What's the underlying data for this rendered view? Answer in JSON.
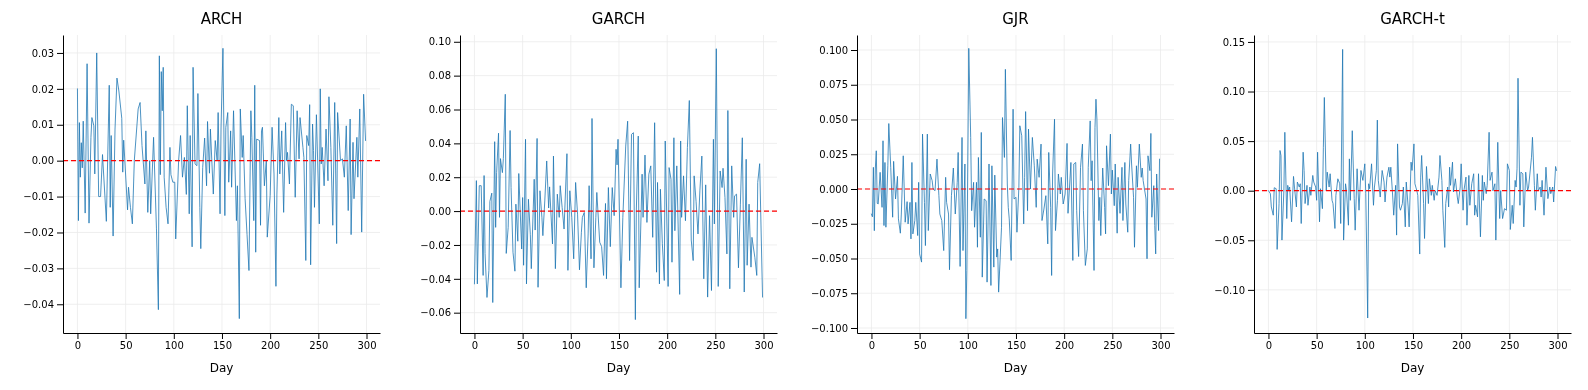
{
  "chart_data": [
    {
      "type": "line",
      "title": "ARCH",
      "xlabel": "Day",
      "xlim": [
        -15,
        314
      ],
      "xticks": [
        0,
        50,
        100,
        150,
        200,
        250,
        300
      ],
      "ylim": [
        -0.048,
        0.035
      ],
      "yticks": [
        {
          "value": -0.04,
          "label": "−0.04"
        },
        {
          "value": -0.03,
          "label": "−0.03"
        },
        {
          "value": -0.02,
          "label": "−0.02"
        },
        {
          "value": -0.01,
          "label": "−0.01"
        },
        {
          "value": 0,
          "label": "0.00"
        },
        {
          "value": 0.01,
          "label": "0.01"
        },
        {
          "value": 0.02,
          "label": "0.02"
        },
        {
          "value": 0.03,
          "label": "0.03"
        }
      ],
      "grid": true,
      "ref_lines": [
        {
          "axis": "y",
          "value": 0,
          "color": "#ff0000",
          "line_style": "dashed"
        }
      ],
      "series": [
        {
          "color": "#1f77b4",
          "x": [
            0,
            1,
            2,
            3,
            4,
            5,
            6,
            8,
            10,
            12,
            14,
            15,
            17,
            18,
            20,
            22,
            24,
            26,
            30,
            33,
            34,
            35,
            37,
            39,
            41,
            43,
            46,
            47,
            48,
            52,
            53,
            55,
            57,
            59,
            63,
            65,
            67,
            70,
            71,
            73,
            75,
            76,
            79,
            82,
            84,
            85,
            86,
            87,
            88,
            89,
            90,
            92,
            94,
            96,
            97,
            99,
            101,
            102,
            105,
            107,
            109,
            111,
            113,
            114,
            116,
            117,
            119,
            120,
            122,
            124,
            125,
            127,
            128,
            130,
            132,
            134,
            135,
            137,
            138,
            141,
            143,
            145,
            146,
            148,
            149,
            151,
            153,
            154,
            156,
            157,
            159,
            160,
            162,
            165,
            166,
            168,
            169,
            171,
            172,
            174,
            176,
            178,
            180,
            181,
            183,
            184,
            185,
            186,
            189,
            190,
            191,
            192,
            194,
            196,
            197,
            200,
            202,
            204,
            206,
            207,
            209,
            210,
            212,
            214,
            216,
            217,
            218,
            220,
            222,
            224,
            226,
            228,
            230,
            231,
            234,
            235,
            237,
            238,
            240,
            241,
            242,
            244,
            245,
            246,
            248,
            251,
            252,
            253,
            254,
            256,
            258,
            260,
            261,
            263,
            265,
            267,
            269,
            270,
            273,
            275,
            277,
            279,
            281,
            283,
            284,
            286,
            287,
            290,
            291,
            293,
            295,
            297,
            299
          ],
          "values": [
            0.02,
            -0.0167,
            0.0106,
            -0.0046,
            0.005,
            -0.002,
            0.011,
            -0.0146,
            0.027,
            -0.0174,
            0.0065,
            0.012,
            0.0097,
            -0.0037,
            0.03,
            -0.01,
            -0.01,
            0.0017,
            -0.0169,
            0.021,
            -0.013,
            0.007,
            -0.021,
            0.0088,
            0.023,
            0.0194,
            0.0118,
            -0.0032,
            0.0057,
            -0.0137,
            -0.0074,
            -0.013,
            -0.0176,
            0,
            0.0144,
            0.0162,
            0.0042,
            -0.0065,
            0.0083,
            -0.0144,
            0,
            -0.0148,
            0.0065,
            -0.019,
            -0.0415,
            0.0292,
            -0.0039,
            0.0248,
            0.0139,
            0.026,
            -0.0046,
            -0.013,
            -0.0176,
            0.0037,
            -0.0039,
            -0.006,
            -0.006,
            -0.0218,
            0,
            0.007,
            -0.0046,
            0.0009,
            -0.0094,
            0.0153,
            -0.0148,
            0.007,
            -0.024,
            0.026,
            -0.0009,
            -0.0014,
            0.0187,
            -0.013,
            -0.0245,
            -0.0019,
            0.0063,
            -0.007,
            0.0109,
            -0.0035,
            0.0088,
            -0.0093,
            0.0056,
            0,
            0.0134,
            -0.0148,
            0.0091,
            0.0313,
            -0.0153,
            0.0093,
            0.0134,
            -0.006,
            0.0083,
            -0.0074,
            0.0139,
            -0.0167,
            -0.007,
            -0.044,
            0.0144,
            0.0009,
            0.007,
            -0.0106,
            -0.0206,
            -0.0306,
            0.0139,
            0.0065,
            -0.0167,
            0.021,
            -0.0255,
            0.006,
            0.0056,
            -0.018,
            0.0083,
            0.0093,
            -0.007,
            0,
            -0.0213,
            -0.0097,
            0.0093,
            -0.0037,
            -0.035,
            -0.0093,
            0.012,
            -0.0037,
            0.0083,
            -0.0144,
            0.0106,
            0,
            0.0023,
            -0.0065,
            0.0157,
            0.0153,
            -0.0102,
            0.0139,
            0.0005,
            0.012,
            0.0037,
            0.0009,
            -0.0278,
            0.007,
            0.0042,
            0.0156,
            -0.029,
            0.0102,
            0.0028,
            -0.013,
            0.0128,
            -0.0176,
            0.02,
            -0.0009,
            0.0037,
            -0.007,
            0.0088,
            -0.0056,
            0.0178,
            0.0037,
            -0.018,
            0.0162,
            -0.0231,
            0.0134,
            0,
            0.0005,
            -0.0046,
            0.0097,
            -0.0139,
            0.0116,
            -0.0206,
            0.0051,
            -0.0106,
            0.0065,
            -0.0046,
            0.0144,
            -0.0199,
            0.0185,
            0.0056
          ]
        }
      ]
    },
    {
      "type": "line",
      "title": "GARCH",
      "xlabel": "Day",
      "xlim": [
        -15,
        314
      ],
      "xticks": [
        0,
        50,
        100,
        150,
        200,
        250,
        300
      ],
      "ylim": [
        -0.072,
        0.104
      ],
      "yticks": [
        {
          "value": -0.06,
          "label": "−0.06"
        },
        {
          "value": -0.04,
          "label": "−0.04"
        },
        {
          "value": -0.02,
          "label": "−0.02"
        },
        {
          "value": 0,
          "label": "0.00"
        },
        {
          "value": 0.02,
          "label": "0.02"
        },
        {
          "value": 0.04,
          "label": "0.04"
        },
        {
          "value": 0.06,
          "label": "0.06"
        },
        {
          "value": 0.08,
          "label": "0.08"
        },
        {
          "value": 0.1,
          "label": "0.10"
        }
      ],
      "grid": true,
      "ref_lines": [
        {
          "axis": "y",
          "value": 0,
          "color": "#ff0000",
          "line_style": "dashed"
        }
      ],
      "series": [
        {
          "color": "#1f77b4",
          "x": [
            0,
            2,
            3,
            5,
            7,
            9,
            10,
            11,
            13,
            15,
            16,
            18,
            19,
            21,
            22,
            23,
            25,
            26,
            27,
            29,
            30,
            32,
            33,
            35,
            37,
            38,
            40,
            42,
            43,
            45,
            46,
            49,
            50,
            51,
            53,
            54,
            56,
            58,
            59,
            62,
            63,
            65,
            66,
            68,
            70,
            71,
            73,
            75,
            77,
            78,
            81,
            82,
            84,
            86,
            88,
            89,
            91,
            93,
            96,
            97,
            99,
            101,
            103,
            105,
            107,
            109,
            111,
            112,
            114,
            116,
            118,
            119,
            121,
            122,
            124,
            126,
            127,
            130,
            132,
            134,
            136,
            137,
            139,
            141,
            143,
            145,
            147,
            148,
            149,
            152,
            154,
            157,
            159,
            161,
            163,
            165,
            167,
            168,
            170,
            171,
            174,
            175,
            177,
            179,
            181,
            183,
            185,
            187,
            189,
            190,
            192,
            193,
            195,
            197,
            198,
            201,
            202,
            204,
            205,
            207,
            208,
            210,
            213,
            214,
            215,
            217,
            219,
            221,
            223,
            225,
            227,
            228,
            230,
            232,
            234,
            236,
            238,
            240,
            242,
            244,
            246,
            248,
            249,
            251,
            253,
            255,
            257,
            258,
            260,
            262,
            263,
            265,
            267,
            269,
            270,
            272,
            274,
            276,
            278,
            280,
            282,
            283,
            285,
            287,
            288,
            291,
            293,
            294,
            296,
            299
          ],
          "values": [
            -0.043,
            0.018,
            -0.043,
            0.015,
            0.015,
            -0.038,
            0.021,
            -0.025,
            -0.051,
            -0.035,
            0.0057,
            0.0106,
            -0.054,
            0.041,
            -0.0096,
            0.0227,
            0.046,
            -0.0037,
            0.031,
            0.0227,
            0.031,
            0.069,
            -0.025,
            -0.0096,
            0.0476,
            0.0139,
            -0.0243,
            -0.0355,
            0.0041,
            -0.0178,
            0.0222,
            -0.0224,
            0.008,
            -0.032,
            0.0424,
            -0.043,
            0.007,
            -0.0139,
            -0.034,
            0.0188,
            -0.0112,
            0.0429,
            -0.045,
            0.012,
            -0.0037,
            -0.0145,
            0.006,
            0.0296,
            0.0018,
            0.0143,
            -0.0194,
            0.0325,
            -0.034,
            0.01,
            -0.0037,
            0.015,
            0.0022,
            -0.0106,
            0.0339,
            -0.035,
            0.012,
            -0.0037,
            -0.0282,
            0.0169,
            -0.0018,
            -0.0347,
            -0.0125,
            -0.0037,
            -0.0008,
            -0.0453,
            -0.0135,
            0.015,
            -0.0282,
            0.0547,
            -0.0335,
            -0.0037,
            0.011,
            -0.0184,
            -0.021,
            -0.038,
            0.0045,
            -0.04,
            0.0139,
            -0.021,
            0.0139,
            -0.0027,
            0.0365,
            0.0273,
            0.0424,
            -0.0453,
            -0.0037,
            0.0384,
            0.0531,
            -0.0292,
            0.0453,
            0.0463,
            -0.0641,
            0.0002,
            0.0443,
            -0.0453,
            0.0218,
            -0.0037,
            0.0331,
            -0.0067,
            0.0218,
            0.0267,
            -0.0155,
            0.0522,
            -0.0361,
            0.0169,
            -0.043,
            0.0129,
            -0.019,
            -0.041,
            0.0414,
            -0.0445,
            0.0257,
            0.0188,
            -0.0302,
            0.0433,
            -0.0116,
            0.0267,
            -0.0492,
            0.0414,
            -0.0037,
            0.0208,
            -0.0057,
            0.0375,
            0.0653,
            -0.0171,
            -0.0292,
            0.0208,
            0.0057,
            -0.0135,
            0.0124,
            0.0325,
            -0.04,
            0.0155,
            -0.0508,
            -0.0027,
            -0.0469,
            0.0424,
            -0.0076,
            0.0959,
            -0.0445,
            0.0237,
            0.0139,
            0.0253,
            0.008,
            -0.0253,
            0.0594,
            -0.0459,
            0.0267,
            -0.0037,
            0.009,
            0.01,
            -0.0335,
            0.0041,
            0.0433,
            -0.0478,
            0.0306,
            -0.032,
            0.0041,
            -0.0331,
            -0.0155,
            -0.0273,
            -0.038,
            0.0169,
            0.028,
            -0.0508
          ]
        }
      ]
    },
    {
      "type": "line",
      "title": "GJR",
      "xlabel": "Day",
      "xlim": [
        -15,
        314
      ],
      "xticks": [
        0,
        50,
        100,
        150,
        200,
        250,
        300
      ],
      "ylim": [
        -0.1036,
        0.1108
      ],
      "yticks": [
        {
          "value": -0.1,
          "label": "−0.100"
        },
        {
          "value": -0.075,
          "label": "−0.075"
        },
        {
          "value": -0.05,
          "label": "−0.050"
        },
        {
          "value": -0.025,
          "label": "−0.025"
        },
        {
          "value": 0,
          "label": "0.000"
        },
        {
          "value": 0.025,
          "label": "0.025"
        },
        {
          "value": 0.05,
          "label": "0.050"
        },
        {
          "value": 0.075,
          "label": "0.075"
        },
        {
          "value": 0.1,
          "label": "0.100"
        }
      ],
      "grid": true,
      "ref_lines": [
        {
          "axis": "y",
          "value": 0,
          "color": "#ff0000",
          "line_style": "dashed"
        }
      ],
      "series": [
        {
          "color": "#1f77b4",
          "x": [
            0,
            1,
            2,
            3,
            4,
            5,
            6,
            7,
            9,
            11,
            12,
            13,
            14,
            15,
            17,
            18,
            20,
            22,
            23,
            25,
            27,
            28,
            30,
            31,
            33,
            35,
            37,
            38,
            40,
            41,
            42,
            43,
            45,
            46,
            48,
            49,
            50,
            52,
            53,
            55,
            56,
            58,
            59,
            61,
            63,
            64,
            66,
            68,
            70,
            71,
            73,
            75,
            77,
            78,
            80,
            81,
            83,
            85,
            87,
            89,
            90,
            92,
            94,
            95,
            97,
            98,
            99,
            101,
            103,
            104,
            106,
            107,
            109,
            110,
            111,
            113,
            114,
            115,
            117,
            119,
            120,
            122,
            124,
            125,
            127,
            128,
            130,
            131,
            132,
            135,
            136,
            138,
            139,
            141,
            142,
            143,
            145,
            147,
            148,
            150,
            151,
            153,
            154,
            156,
            158,
            159,
            160,
            162,
            163,
            165,
            167,
            169,
            171,
            172,
            174,
            176,
            177,
            179,
            181,
            183,
            184,
            186,
            187,
            188,
            190,
            191,
            193,
            194,
            196,
            197,
            199,
            201,
            203,
            204,
            207,
            209,
            210,
            212,
            213,
            215,
            217,
            219,
            220,
            222,
            224,
            225,
            227,
            228,
            229,
            231,
            232,
            233,
            234,
            236,
            237,
            238,
            240,
            242,
            243,
            244,
            246,
            248,
            249,
            250,
            252,
            253,
            255,
            256,
            258,
            260,
            261,
            263,
            264,
            266,
            267,
            269,
            270,
            272,
            273,
            275,
            276,
            278,
            280,
            281,
            282,
            285,
            286,
            287,
            289,
            290,
            291,
            293,
            294,
            295,
            296,
            298,
            299
          ],
          "values": [
            -0.018,
            -0.02,
            0.0156,
            -0.03,
            0.0144,
            0.0275,
            -0.0103,
            -0.0108,
            0.012,
            -0.0132,
            0.0347,
            -0.0263,
            0.0191,
            -0.0275,
            0.0167,
            0.0471,
            0.0156,
            -0.0203,
            0.0199,
            -0.0072,
            0.0091,
            -0.0215,
            -0.0318,
            -0.018,
            0.0239,
            -0.0239,
            -0.0091,
            -0.0251,
            -0.0096,
            -0.0359,
            0.0191,
            -0.0323,
            -0.0227,
            -0.0096,
            -0.0335,
            0.0048,
            -0.0467,
            -0.0526,
            0.0395,
            -0.0096,
            -0.0407,
            0.0395,
            -0.0299,
            0.0108,
            0.006,
            0,
            -0.0012,
            0.0215,
            -0.0048,
            -0.018,
            -0.0227,
            -0.0443,
            0.0084,
            -0.0096,
            -0.018,
            -0.0581,
            -0.0048,
            0.0151,
            -0.018,
            0.0048,
            0.0263,
            -0.0557,
            0.0371,
            -0.0443,
            0.018,
            -0.0933,
            -0.0586,
            0.1012,
            0.0371,
            -0.0156,
            0.0048,
            -0.0275,
            0.0048,
            -0.0419,
            0.0227,
            -0.0347,
            0.0407,
            -0.0634,
            -0.0072,
            -0.0084,
            -0.067,
            0.018,
            -0.0694,
            0.0167,
            -0.0562,
            0.01,
            -0.049,
            -0.0431,
            -0.0742,
            -0.0275,
            0.0514,
            0.0227,
            0.0861,
            0.0036,
            -0.0132,
            -0.0215,
            -0.0514,
            0.0574,
            -0.0072,
            -0.006,
            -0.0311,
            0.0012,
            0.0455,
            0.0383,
            -0.0251,
            0.0084,
            0.0557,
            -0.0156,
            0.0431,
            0,
            0.0371,
            0.0167,
            -0.0132,
            0.0215,
            0.0084,
            0.0323,
            -0.0227,
            -0.0144,
            -0.0048,
            -0.0395,
            0.0263,
            -0.0132,
            -0.0622,
            0.0108,
            0.0502,
            -0.0299,
            -0.0084,
            0.0108,
            -0.0036,
            0.0084,
            -0.0108,
            -0.0036,
            0.0328,
            -0.0175,
            0.0191,
            -0.0514,
            0.018,
            0.0191,
            -0.0156,
            -0.0486,
            0.0156,
            0.0323,
            -0.0156,
            -0.055,
            -0.0431,
            0.0156,
            0.049,
            0.006,
            0.0203,
            -0.0586,
            0.0443,
            0.0646,
            0.0502,
            -0.0227,
            -0.006,
            -0.0335,
            0.0151,
            -0.0132,
            -0.0323,
            0.0311,
            0.0024,
            0.0395,
            -0.0036,
            0.0136,
            -0.012,
            0.018,
            -0.0318,
            0.0084,
            -0.0175,
            0.0156,
            -0.0227,
            0.0191,
            -0.0108,
            -0.0311,
            0.006,
            0.0323,
            0.018,
            -0.006,
            -0.0419,
            0.0167,
            0.0012,
            0.0323,
            0.0084,
            0.0151,
            0.006,
            -0.0072,
            -0.0502,
            0.0239,
            0.0132,
            0.04,
            -0.0203,
            0.0024,
            -0.0263,
            -0.0467,
            0.0108,
            -0.0299,
            0.0215
          ]
        }
      ]
    },
    {
      "type": "line",
      "title": "GARCH-t",
      "xlabel": "Day",
      "xlim": [
        -15,
        314
      ],
      "xticks": [
        0,
        50,
        100,
        150,
        200,
        250,
        300
      ],
      "ylim": [
        -0.1435,
        0.157
      ],
      "yticks": [
        {
          "value": -0.1,
          "label": "−0.10"
        },
        {
          "value": -0.05,
          "label": "−0.05"
        },
        {
          "value": 0,
          "label": "0.00"
        },
        {
          "value": 0.05,
          "label": "0.05"
        },
        {
          "value": 0.1,
          "label": "0.10"
        },
        {
          "value": 0.15,
          "label": "0.15"
        }
      ],
      "grid": true,
      "ref_lines": [
        {
          "axis": "y",
          "value": 0,
          "color": "#ff0000",
          "line_style": "dashed"
        }
      ],
      "series": [
        {
          "color": "#1f77b4",
          "x": [
            0,
            2,
            3,
            5,
            6,
            8,
            9,
            11,
            12,
            13,
            14,
            16,
            17,
            19,
            20,
            21,
            22,
            24,
            26,
            27,
            29,
            30,
            32,
            33,
            34,
            36,
            37,
            38,
            40,
            41,
            43,
            44,
            46,
            47,
            49,
            50,
            51,
            53,
            54,
            56,
            57,
            58,
            60,
            61,
            63,
            64,
            66,
            67,
            69,
            70,
            72,
            74,
            75,
            77,
            78,
            80,
            81,
            83,
            84,
            85,
            87,
            89,
            90,
            92,
            93,
            94,
            96,
            98,
            100,
            101,
            103,
            104,
            105,
            107,
            109,
            110,
            112,
            113,
            114,
            116,
            118,
            120,
            121,
            123,
            125,
            126,
            127,
            129,
            130,
            132,
            133,
            134,
            136,
            137,
            139,
            140,
            142,
            143,
            145,
            146,
            148,
            149,
            151,
            152,
            154,
            155,
            157,
            158,
            159,
            161,
            162,
            164,
            166,
            167,
            169,
            170,
            172,
            173,
            175,
            177,
            178,
            180,
            181,
            183,
            184,
            186,
            187,
            188,
            189,
            191,
            192,
            194,
            196,
            197,
            199,
            200,
            202,
            203,
            205,
            206,
            208,
            209,
            211,
            213,
            214,
            215,
            217,
            218,
            220,
            222,
            223,
            224,
            226,
            227,
            229,
            230,
            232,
            233,
            235,
            236,
            238,
            240,
            241,
            243,
            245,
            247,
            248,
            250,
            251,
            253,
            254,
            256,
            257,
            258,
            259,
            261,
            262,
            264,
            265,
            267,
            269,
            270,
            273,
            274,
            276,
            277,
            279,
            280,
            282,
            283,
            284,
            286,
            287,
            288,
            290,
            292,
            293,
            295,
            296,
            298,
            299
          ],
          "values": [
            0,
            -0.003,
            -0.0164,
            -0.0247,
            0.003,
            0.002,
            -0.0592,
            -0.013,
            0.0405,
            0.0355,
            -0.0498,
            0,
            0.0589,
            -0.0281,
            0.0054,
            0,
            0.0037,
            -0.0314,
            0.0144,
            0.0037,
            -0.0164,
            0.0087,
            0.0037,
            0.007,
            -0.0331,
            0.0388,
            0.0204,
            -0.013,
            0.0054,
            -0.0147,
            0.0037,
            -0.0047,
            0.0154,
            0.0087,
            0.0037,
            -0.0097,
            0.0388,
            -0.0314,
            0.002,
            -0.0181,
            0.0438,
            0.094,
            0,
            0.0187,
            0.0037,
            0.0171,
            -0.0097,
            -0.013,
            -0.0381,
            -0.0047,
            0.012,
            0.007,
            -0.0331,
            0.1425,
            -0.0498,
            0.007,
            0,
            -0.0348,
            0.0321,
            -0.0097,
            0.0605,
            -0.008,
            -0.0398,
            0.0221,
            0,
            -0.0197,
            0.0204,
            0.0104,
            0.0271,
            -0.003,
            -0.1284,
            0.007,
            0.002,
            0.0271,
            -0.0147,
            0.0037,
            0.0204,
            0.0712,
            0.0104,
            -0.0064,
            0.0204,
            0.0087,
            -0.0114,
            0.0137,
            0.0237,
            0.0137,
            0.0237,
            -0.0064,
            -0.0247,
            0.0054,
            -0.0448,
            0.0472,
            -0.0164,
            -0.0197,
            -0.013,
            0.0037,
            -0.0365,
            0.0087,
            -0.0164,
            -0.0365,
            0.0288,
            0.0204,
            0.0472,
            0.007,
            0,
            -0.0047,
            -0.0639,
            0.0137,
            0.0355,
            -0.013,
            -0.0482,
            0.0244,
            -0.013,
            0.012,
            -0.0047,
            0.0054,
            -0.0097,
            0,
            -0.0047,
            0.0137,
            0.0355,
            0.0104,
            -0.0197,
            -0.0572,
            -0.013,
            0.0037,
            -0.0164,
            0.0237,
            0.0054,
            0.0288,
            -0.0013,
            0.012,
            -0.0064,
            -0.013,
            0.0037,
            0.0271,
            -0.0197,
            0.001,
            0.0137,
            -0.0348,
            0.0154,
            -0.0147,
            0.007,
            0.0171,
            -0.0247,
            -0.0147,
            -0.0264,
            0.0171,
            -0.0465,
            0.0154,
            -0.0097,
            0.0087,
            -0.003,
            0.0054,
            0.0589,
            0.0104,
            0.0187,
            0,
            0.007,
            -0.0498,
            0.0488,
            -0.0281,
            0,
            -0.0281,
            -0.0181,
            -0.0197,
            0.0271,
            0.0204,
            -0.0391,
            -0.0147,
            -0.0331,
            0.0104,
            0.0037,
            0.0221,
            0.1134,
            -0.0147,
            0.0187,
            0.0171,
            -0.0365,
            0.0187,
            0,
            0.0037,
            0.0338,
            0.0538,
            0.0054,
            -0.0197,
            0.0171,
            0,
            0.0037,
            -0.0064,
            0.0104,
            -0.0247,
            0,
            0.0237,
            -0.008,
            0.0037,
            -0.003,
            0.0037,
            -0.0114,
            0.0244,
            0.0204
          ]
        }
      ]
    }
  ]
}
